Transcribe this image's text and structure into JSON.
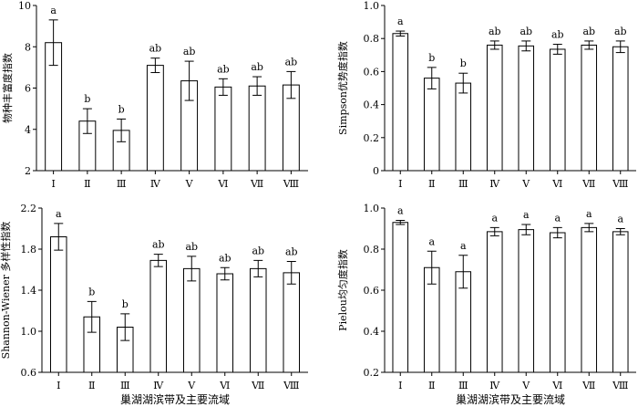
{
  "chart_data": [
    {
      "type": "bar",
      "ylabel": "物种丰富度指数",
      "xlabel": "",
      "categories": [
        "Ⅰ",
        "Ⅱ",
        "Ⅲ",
        "Ⅳ",
        "Ⅴ",
        "Ⅵ",
        "Ⅶ",
        "Ⅷ"
      ],
      "values": [
        8.2,
        4.4,
        3.95,
        7.1,
        6.35,
        6.05,
        6.1,
        6.15
      ],
      "errors": [
        1.1,
        0.6,
        0.55,
        0.35,
        0.95,
        0.4,
        0.45,
        0.65
      ],
      "significance": [
        "a",
        "b",
        "b",
        "ab",
        "ab",
        "ab",
        "ab",
        "ab"
      ],
      "ylim": [
        2,
        10
      ],
      "yticks": [
        "2",
        "4",
        "6",
        "8",
        "10"
      ]
    },
    {
      "type": "bar",
      "ylabel": "Simpson优势度指数",
      "xlabel": "",
      "categories": [
        "Ⅰ",
        "Ⅱ",
        "Ⅲ",
        "Ⅳ",
        "Ⅴ",
        "Ⅵ",
        "Ⅶ",
        "Ⅷ"
      ],
      "values": [
        0.83,
        0.56,
        0.53,
        0.76,
        0.755,
        0.735,
        0.76,
        0.75
      ],
      "errors": [
        0.015,
        0.065,
        0.06,
        0.025,
        0.03,
        0.03,
        0.025,
        0.035
      ],
      "significance": [
        "a",
        "b",
        "b",
        "ab",
        "ab",
        "ab",
        "ab",
        "ab"
      ],
      "ylim": [
        0,
        1
      ],
      "yticks": [
        "0",
        "0.2",
        "0.4",
        "0.6",
        "0.8",
        "1.0"
      ]
    },
    {
      "type": "bar",
      "ylabel": "Shannon-Wiener 多样性指数",
      "xlabel": "巢湖湖滨带及主要流域",
      "categories": [
        "Ⅰ",
        "Ⅱ",
        "Ⅲ",
        "Ⅳ",
        "Ⅴ",
        "Ⅵ",
        "Ⅶ",
        "Ⅷ"
      ],
      "values": [
        1.92,
        1.14,
        1.04,
        1.69,
        1.61,
        1.56,
        1.61,
        1.57
      ],
      "errors": [
        0.13,
        0.15,
        0.13,
        0.06,
        0.12,
        0.06,
        0.08,
        0.11
      ],
      "significance": [
        "a",
        "b",
        "b",
        "ab",
        "ab",
        "ab",
        "ab",
        "ab"
      ],
      "ylim": [
        0.6,
        2.2
      ],
      "yticks": [
        "0.6",
        "1.0",
        "1.4",
        "1.8",
        "2.2"
      ]
    },
    {
      "type": "bar",
      "ylabel": "Pielou均匀度指数",
      "xlabel": "巢湖湖滨带及主要流域",
      "categories": [
        "Ⅰ",
        "Ⅱ",
        "Ⅲ",
        "Ⅳ",
        "Ⅴ",
        "Ⅵ",
        "Ⅶ",
        "Ⅷ"
      ],
      "values": [
        0.93,
        0.71,
        0.69,
        0.885,
        0.895,
        0.88,
        0.905,
        0.885
      ],
      "errors": [
        0.01,
        0.08,
        0.08,
        0.02,
        0.025,
        0.025,
        0.02,
        0.015
      ],
      "significance": [
        "a",
        "a",
        "a",
        "a",
        "a",
        "a",
        "a",
        "a"
      ],
      "ylim": [
        0.2,
        1.0
      ],
      "yticks": [
        "0.2",
        "0.4",
        "0.6",
        "0.8",
        "1.0"
      ]
    }
  ]
}
